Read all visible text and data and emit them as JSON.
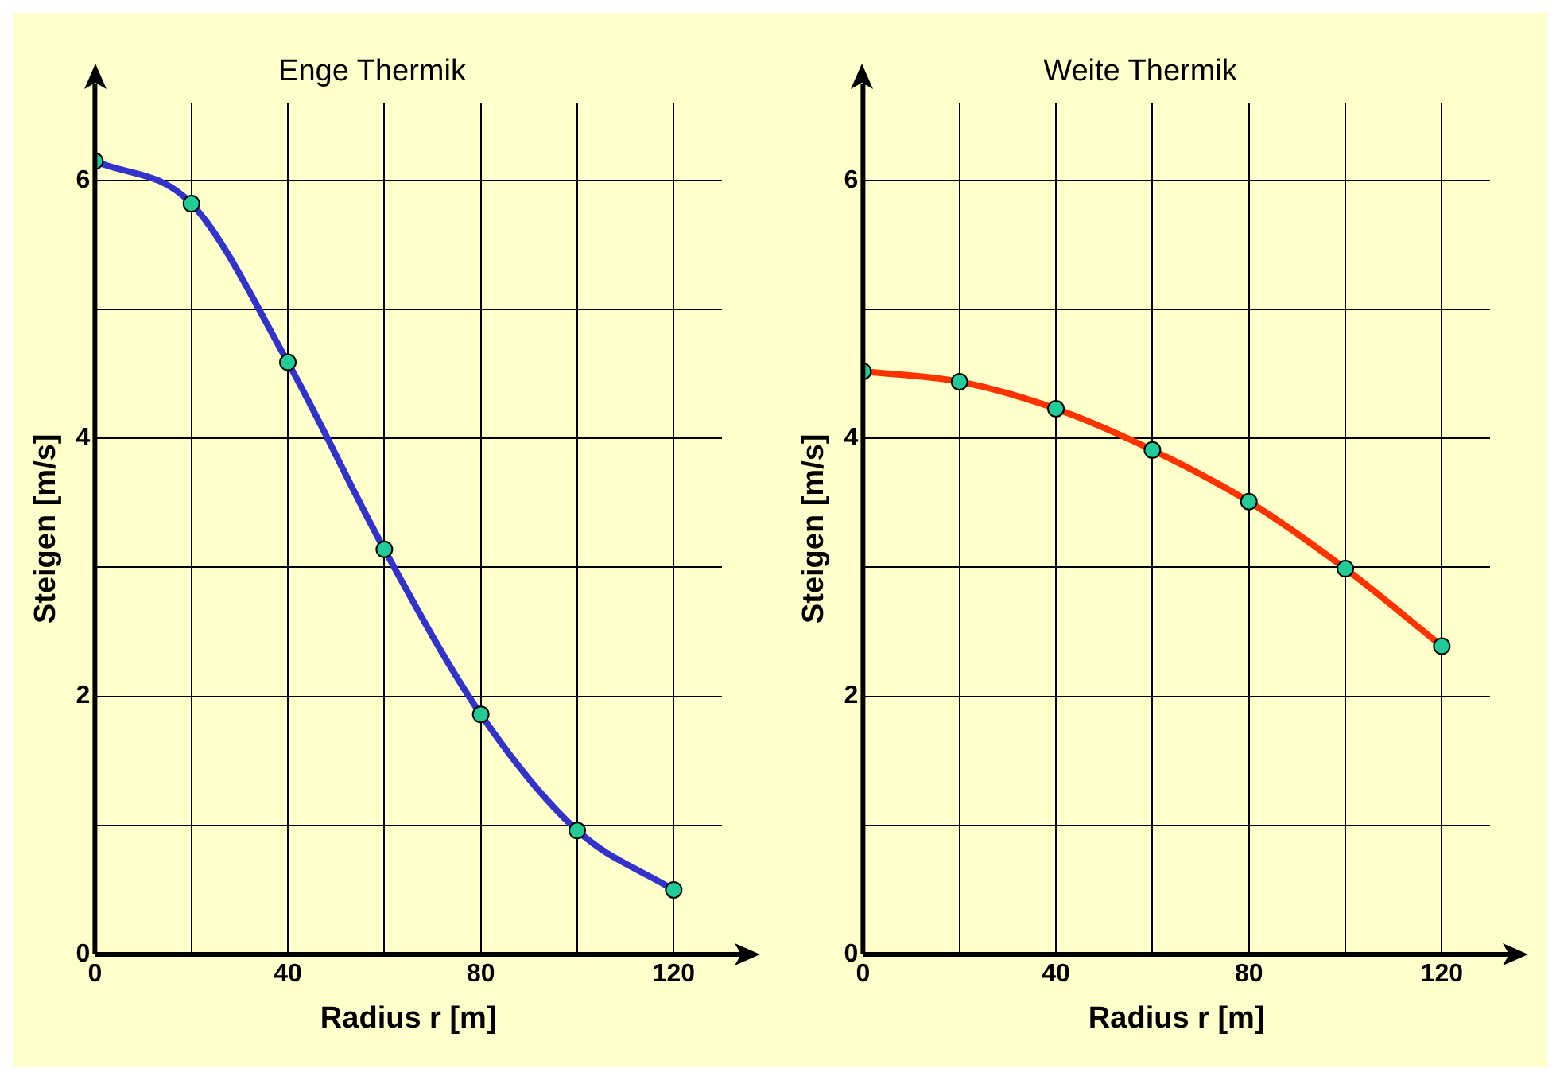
{
  "chart_data": [
    {
      "type": "line",
      "title": "Enge Thermik",
      "xlabel": "Radius r [m]",
      "ylabel": "Steigen [m/s]",
      "x": [
        0,
        20,
        40,
        60,
        80,
        100,
        120
      ],
      "series": [
        {
          "color": "#3333cc",
          "values": [
            6.15,
            5.82,
            4.59,
            3.14,
            1.86,
            0.96,
            0.5
          ]
        }
      ],
      "xlim": [
        0,
        130
      ],
      "xticks": [
        0,
        {
          "value": 20,
          "label": null
        },
        40,
        {
          "value": 60,
          "label": null
        },
        80,
        {
          "value": 100,
          "label": null
        },
        120
      ],
      "ylim": [
        0,
        6.6
      ],
      "yticks": [
        0,
        {
          "value": 1,
          "label": null
        },
        2,
        {
          "value": 3,
          "label": null
        },
        4,
        {
          "value": 5,
          "label": null
        },
        6
      ],
      "grid": true,
      "legend": false,
      "marker": "circle",
      "line_style": "solid"
    },
    {
      "type": "line",
      "title": "Weite Thermik",
      "xlabel": "Radius r [m]",
      "ylabel": "Steigen [m/s]",
      "x": [
        0,
        20,
        40,
        60,
        80,
        100,
        120
      ],
      "series": [
        {
          "color": "#ff3300",
          "values": [
            4.52,
            4.44,
            4.23,
            3.91,
            3.51,
            2.99,
            2.39
          ]
        }
      ],
      "xlim": [
        0,
        130
      ],
      "xticks": [
        0,
        {
          "value": 20,
          "label": null
        },
        40,
        {
          "value": 60,
          "label": null
        },
        80,
        {
          "value": 100,
          "label": null
        },
        120
      ],
      "ylim": [
        0,
        6.6
      ],
      "yticks": [
        0,
        {
          "value": 1,
          "label": null
        },
        2,
        {
          "value": 3,
          "label": null
        },
        4,
        {
          "value": 5,
          "label": null
        },
        6
      ],
      "grid": true,
      "legend": false,
      "marker": "circle",
      "line_style": "solid"
    }
  ]
}
